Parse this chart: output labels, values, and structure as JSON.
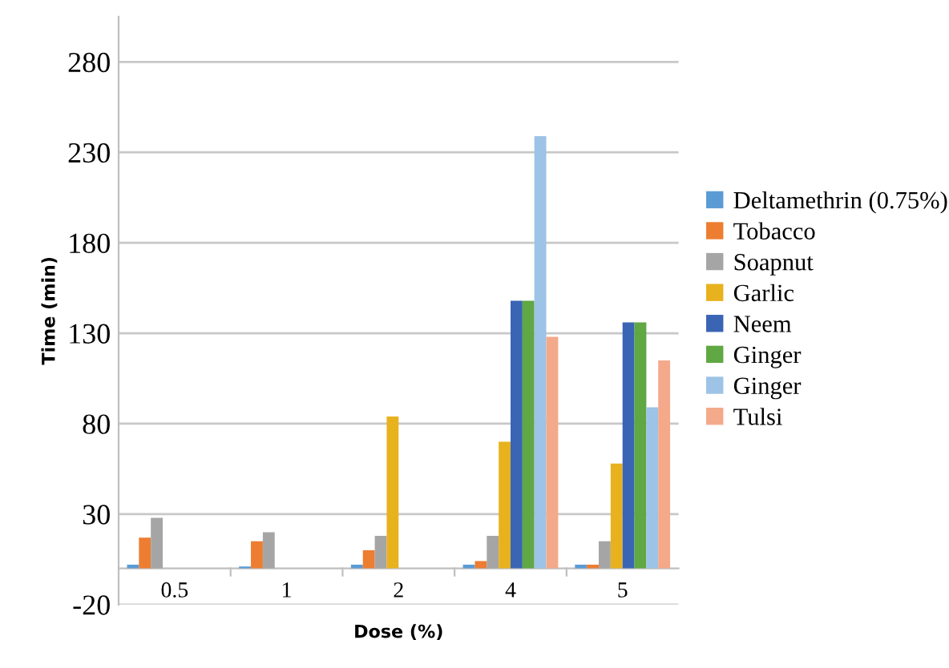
{
  "chart_data": {
    "type": "bar",
    "xlabel": "Dose (%)",
    "ylabel": "Time (min)",
    "categories": [
      "0.5",
      "1",
      "2",
      "4",
      "5"
    ],
    "series": [
      {
        "name": "Deltamethrin (0.75%)",
        "color": "#5b9bd5",
        "values": [
          2,
          1,
          2,
          2,
          2
        ]
      },
      {
        "name": "Tobacco",
        "color": "#ed7d31",
        "values": [
          17,
          15,
          10,
          4,
          2
        ]
      },
      {
        "name": "Soapnut",
        "color": "#a5a5a5",
        "values": [
          28,
          20,
          18,
          18,
          15
        ]
      },
      {
        "name": "Garlic",
        "color": "#e8b21e",
        "values": [
          null,
          null,
          84,
          70,
          58
        ]
      },
      {
        "name": "Neem",
        "color": "#3a64b4",
        "values": [
          null,
          null,
          null,
          148,
          136
        ]
      },
      {
        "name": "Ginger",
        "color": "#5fa843",
        "values": [
          null,
          null,
          null,
          148,
          136
        ]
      },
      {
        "name": "Ginger",
        "color": "#9dc3e6",
        "values": [
          null,
          null,
          null,
          239,
          89
        ]
      },
      {
        "name": "Tulsi",
        "color": "#f4a98a",
        "values": [
          null,
          null,
          null,
          128,
          115
        ]
      }
    ],
    "ylim": [
      -20,
      305
    ],
    "yticks": [
      -20,
      30,
      80,
      130,
      180,
      230,
      280
    ],
    "grid": "y",
    "legend": "right"
  }
}
